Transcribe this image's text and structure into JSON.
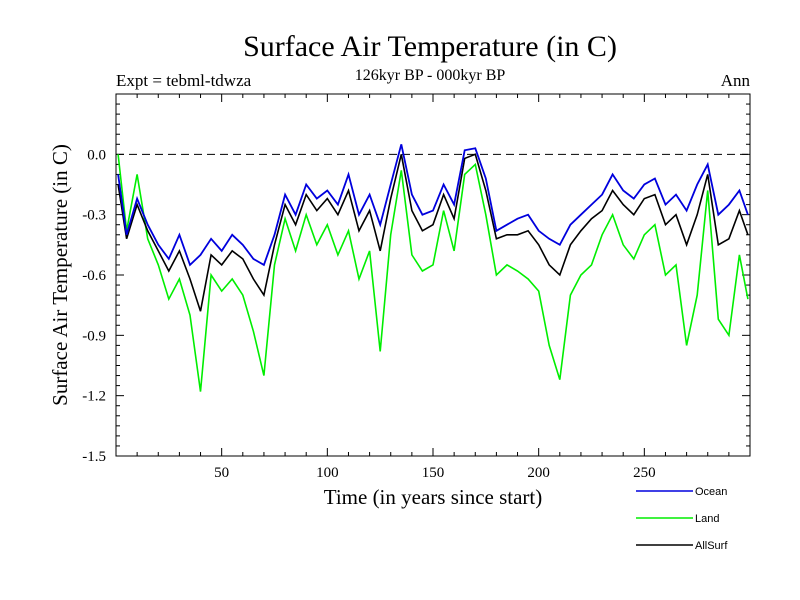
{
  "chart_data": {
    "type": "line",
    "title": "Surface Air Temperature (in C)",
    "subtitle": "126kyr BP - 000kyr BP",
    "left_note": "Expt = tebml-tdwza",
    "right_note": "Ann",
    "xlabel": "Time (in years since start)",
    "ylabel": "Surface Air Temperature (in C)",
    "xlim": [
      0,
      300
    ],
    "ylim": [
      -1.5,
      0.3
    ],
    "x_ticks": [
      50,
      100,
      150,
      200,
      250
    ],
    "x_tick_labels": [
      "50",
      "100",
      "150",
      "200",
      "250"
    ],
    "y_ticks": [
      0.0,
      -0.3,
      -0.6,
      -0.9,
      -1.2,
      -1.5
    ],
    "y_tick_labels": [
      "0.0",
      "-0.3",
      "-0.6",
      "-0.9",
      "-1.2",
      "-1.5"
    ],
    "reference_line": 0.0,
    "x": [
      1,
      5,
      10,
      15,
      20,
      25,
      30,
      35,
      40,
      45,
      50,
      55,
      60,
      65,
      70,
      75,
      80,
      85,
      90,
      95,
      100,
      105,
      110,
      115,
      120,
      125,
      130,
      135,
      140,
      145,
      150,
      155,
      160,
      165,
      170,
      175,
      180,
      185,
      190,
      195,
      200,
      205,
      210,
      215,
      220,
      225,
      230,
      235,
      240,
      245,
      250,
      255,
      260,
      265,
      270,
      275,
      280,
      285,
      290,
      295,
      299
    ],
    "series": [
      {
        "name": "Ocean",
        "color": "#0000dd",
        "values": [
          -0.1,
          -0.4,
          -0.22,
          -0.35,
          -0.45,
          -0.52,
          -0.4,
          -0.55,
          -0.5,
          -0.42,
          -0.48,
          -0.4,
          -0.45,
          -0.52,
          -0.55,
          -0.4,
          -0.2,
          -0.3,
          -0.15,
          -0.22,
          -0.18,
          -0.25,
          -0.1,
          -0.3,
          -0.2,
          -0.35,
          -0.15,
          0.05,
          -0.2,
          -0.3,
          -0.28,
          -0.15,
          -0.25,
          0.02,
          0.03,
          -0.12,
          -0.38,
          -0.35,
          -0.32,
          -0.3,
          -0.38,
          -0.42,
          -0.45,
          -0.35,
          -0.3,
          -0.25,
          -0.2,
          -0.1,
          -0.18,
          -0.22,
          -0.15,
          -0.12,
          -0.25,
          -0.2,
          -0.28,
          -0.15,
          -0.05,
          -0.3,
          -0.25,
          -0.18,
          -0.3
        ]
      },
      {
        "name": "Land",
        "color": "#00ee00",
        "values": [
          0.0,
          -0.38,
          -0.1,
          -0.42,
          -0.55,
          -0.72,
          -0.62,
          -0.8,
          -1.18,
          -0.6,
          -0.68,
          -0.62,
          -0.7,
          -0.88,
          -1.1,
          -0.55,
          -0.32,
          -0.48,
          -0.3,
          -0.45,
          -0.35,
          -0.5,
          -0.38,
          -0.62,
          -0.48,
          -0.98,
          -0.4,
          -0.08,
          -0.5,
          -0.58,
          -0.55,
          -0.28,
          -0.48,
          -0.1,
          -0.05,
          -0.3,
          -0.6,
          -0.55,
          -0.58,
          -0.62,
          -0.68,
          -0.95,
          -1.12,
          -0.7,
          -0.6,
          -0.55,
          -0.4,
          -0.3,
          -0.45,
          -0.52,
          -0.4,
          -0.35,
          -0.6,
          -0.55,
          -0.95,
          -0.7,
          -0.18,
          -0.82,
          -0.9,
          -0.5,
          -0.72
        ]
      },
      {
        "name": "AllSurf",
        "color": "#000000",
        "values": [
          -0.15,
          -0.42,
          -0.25,
          -0.38,
          -0.48,
          -0.58,
          -0.48,
          -0.62,
          -0.78,
          -0.5,
          -0.55,
          -0.48,
          -0.52,
          -0.62,
          -0.7,
          -0.45,
          -0.25,
          -0.35,
          -0.2,
          -0.28,
          -0.22,
          -0.3,
          -0.18,
          -0.38,
          -0.28,
          -0.48,
          -0.22,
          0.0,
          -0.28,
          -0.38,
          -0.35,
          -0.2,
          -0.32,
          -0.02,
          0.0,
          -0.18,
          -0.42,
          -0.4,
          -0.4,
          -0.38,
          -0.45,
          -0.55,
          -0.6,
          -0.45,
          -0.38,
          -0.32,
          -0.28,
          -0.18,
          -0.25,
          -0.3,
          -0.22,
          -0.2,
          -0.35,
          -0.3,
          -0.45,
          -0.3,
          -0.1,
          -0.45,
          -0.42,
          -0.28,
          -0.4
        ]
      }
    ]
  }
}
